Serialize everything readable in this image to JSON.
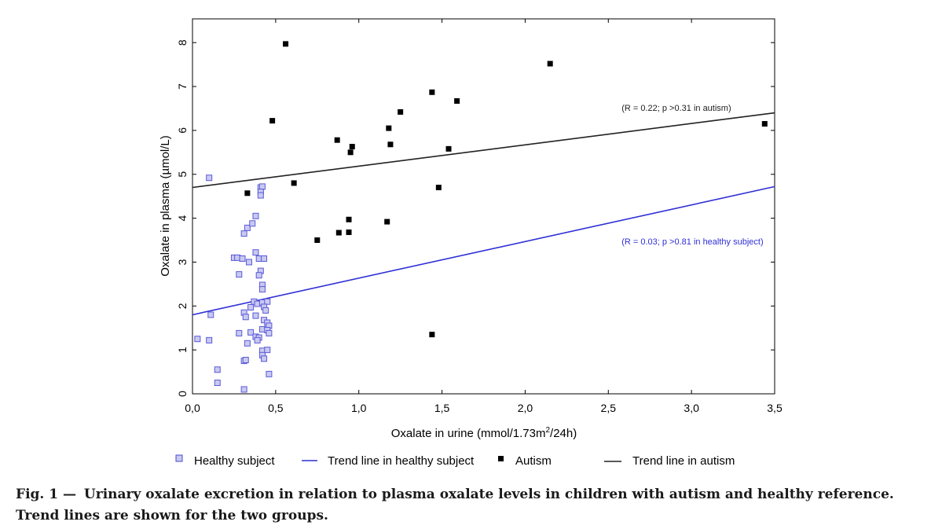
{
  "chart_data": {
    "type": "scatter",
    "xlabel_main": "Oxalate in urine (mmol/1.73m",
    "xlabel_sup": "2",
    "xlabel_tail": "/24h)",
    "ylabel": "Oxalate in plasma (µmol/L)",
    "xlim": [
      0,
      3.5
    ],
    "ylim": [
      0,
      8.5
    ],
    "x_ticks": [
      "0,0",
      "0,5",
      "1,0",
      "1,5",
      "2,0",
      "2,5",
      "3,0",
      "3,5"
    ],
    "y_ticks": [
      "0",
      "1",
      "2",
      "3",
      "4",
      "5",
      "6",
      "7",
      "8"
    ],
    "series": [
      {
        "name": "Healthy subject",
        "marker": "open-square",
        "color": "#5a5ad8",
        "points": [
          [
            0.1,
            4.92
          ],
          [
            0.03,
            1.25
          ],
          [
            0.1,
            1.22
          ],
          [
            0.11,
            1.8
          ],
          [
            0.15,
            0.55
          ],
          [
            0.15,
            0.25
          ],
          [
            0.25,
            3.1
          ],
          [
            0.27,
            3.1
          ],
          [
            0.28,
            2.72
          ],
          [
            0.3,
            3.08
          ],
          [
            0.31,
            3.65
          ],
          [
            0.33,
            3.78
          ],
          [
            0.34,
            3.0
          ],
          [
            0.36,
            3.88
          ],
          [
            0.38,
            4.05
          ],
          [
            0.41,
            4.7
          ],
          [
            0.42,
            4.72
          ],
          [
            0.41,
            4.6
          ],
          [
            0.41,
            4.52
          ],
          [
            0.38,
            3.22
          ],
          [
            0.4,
            3.08
          ],
          [
            0.43,
            3.08
          ],
          [
            0.41,
            2.8
          ],
          [
            0.4,
            2.7
          ],
          [
            0.42,
            2.48
          ],
          [
            0.42,
            2.38
          ],
          [
            0.37,
            2.1
          ],
          [
            0.39,
            2.05
          ],
          [
            0.42,
            2.08
          ],
          [
            0.45,
            2.1
          ],
          [
            0.35,
            1.97
          ],
          [
            0.43,
            1.98
          ],
          [
            0.44,
            1.9
          ],
          [
            0.31,
            1.85
          ],
          [
            0.32,
            1.75
          ],
          [
            0.38,
            1.78
          ],
          [
            0.43,
            1.68
          ],
          [
            0.45,
            1.62
          ],
          [
            0.46,
            1.55
          ],
          [
            0.42,
            1.47
          ],
          [
            0.45,
            1.45
          ],
          [
            0.46,
            1.38
          ],
          [
            0.28,
            1.38
          ],
          [
            0.35,
            1.4
          ],
          [
            0.38,
            1.3
          ],
          [
            0.4,
            1.28
          ],
          [
            0.39,
            1.22
          ],
          [
            0.33,
            1.15
          ],
          [
            0.42,
            0.98
          ],
          [
            0.45,
            1.0
          ],
          [
            0.42,
            0.88
          ],
          [
            0.43,
            0.8
          ],
          [
            0.31,
            0.75
          ],
          [
            0.32,
            0.77
          ],
          [
            0.46,
            0.45
          ],
          [
            0.31,
            0.1
          ]
        ]
      },
      {
        "name": "Autism",
        "marker": "filled-square",
        "color": "#000000",
        "points": [
          [
            0.56,
            7.97
          ],
          [
            0.48,
            6.22
          ],
          [
            0.33,
            4.57
          ],
          [
            0.61,
            4.8
          ],
          [
            0.75,
            3.5
          ],
          [
            0.87,
            5.78
          ],
          [
            0.88,
            3.67
          ],
          [
            0.94,
            3.97
          ],
          [
            0.95,
            5.5
          ],
          [
            0.96,
            5.63
          ],
          [
            0.94,
            3.68
          ],
          [
            1.17,
            3.92
          ],
          [
            1.18,
            6.05
          ],
          [
            1.19,
            5.68
          ],
          [
            1.25,
            6.42
          ],
          [
            1.44,
            6.87
          ],
          [
            1.44,
            1.35
          ],
          [
            1.48,
            4.7
          ],
          [
            1.54,
            5.58
          ],
          [
            1.59,
            6.67
          ],
          [
            2.15,
            7.52
          ],
          [
            3.44,
            6.15
          ]
        ]
      }
    ],
    "trend_lines": [
      {
        "name": "Trend line in healthy subject",
        "color": "#2f2fd6",
        "from": [
          0,
          1.8
        ],
        "to": [
          3.5,
          4.72
        ],
        "annotation": "(R = 0.03; p >0.81 in healthy subject)",
        "annotation_at": [
          2.58,
          3.4
        ]
      },
      {
        "name": "Trend line in autism",
        "color": "#222222",
        "from": [
          0,
          4.7
        ],
        "to": [
          3.5,
          6.4
        ],
        "annotation": "(R = 0.22; p >0.31 in autism)",
        "annotation_at": [
          2.58,
          6.45
        ]
      }
    ],
    "grid": false,
    "legend_position": "bottom",
    "legend": [
      {
        "label": "Healthy subject",
        "symbol": "open-square"
      },
      {
        "label": "Trend line in healthy subject",
        "symbol": "blue-line"
      },
      {
        "label": "Autism",
        "symbol": "filled-square"
      },
      {
        "label": "Trend line in autism",
        "symbol": "black-line"
      }
    ]
  },
  "caption": {
    "label": "Fig. 1 —",
    "text": "Urinary oxalate excretion in relation to plasma oxalate levels in children with autism and healthy reference. Trend lines are shown for the two groups."
  }
}
